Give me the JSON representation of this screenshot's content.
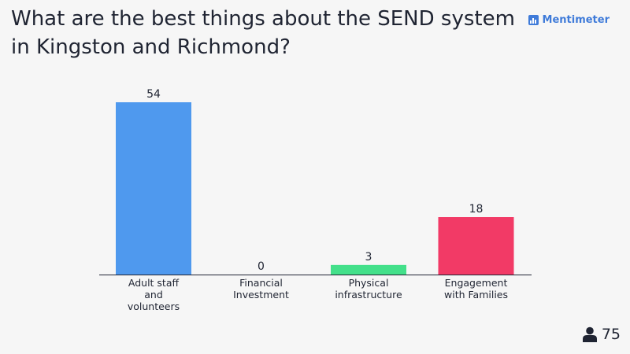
{
  "header": {
    "title": "What are the best things about the SEND system in Kingston and Richmond?",
    "logo_text": "Mentimeter"
  },
  "footer": {
    "participants_count": "75",
    "participants_icon": "person-icon"
  },
  "colors": {
    "background": "#f6f6f6",
    "text": "#1f2432",
    "axis": "#1f2432",
    "brand": "#3f7bd9"
  },
  "chart_data": {
    "type": "bar",
    "categories": [
      "Adult staff and volunteers",
      "Financial Investment",
      "Physical infrastructure",
      "Engagement with Families"
    ],
    "category_lines": [
      [
        "Adult staff",
        "and",
        "volunteers"
      ],
      [
        "Financial",
        "Investment"
      ],
      [
        "Physical",
        "infrastructure"
      ],
      [
        "Engagement",
        "with Families"
      ]
    ],
    "values": [
      54,
      0,
      3,
      18
    ],
    "colors": [
      "#4f99ee",
      "#5a3ee8",
      "#43e08a",
      "#f23a66"
    ],
    "value_labels": [
      "54",
      "0",
      "3",
      "18"
    ],
    "ylim": [
      0,
      54
    ],
    "grid": false,
    "legend": "none"
  }
}
